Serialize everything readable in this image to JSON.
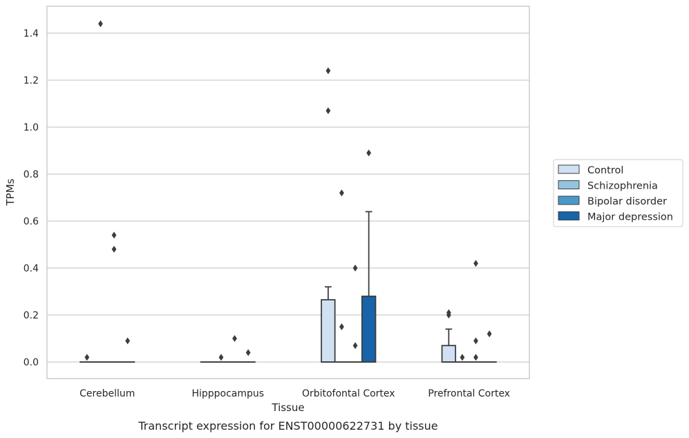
{
  "caption": "Transcript expression for ENST00000622731 by tissue",
  "chart_data": {
    "type": "box",
    "xlabel": "Tissue",
    "ylabel": "TPMs",
    "ylim": [
      -0.07,
      1.52
    ],
    "yticks": [
      0.0,
      0.2,
      0.4,
      0.6,
      0.8,
      1.0,
      1.2,
      1.4
    ],
    "ytick_labels": [
      "0.0",
      "0.2",
      "0.4",
      "0.6",
      "0.8",
      "1.0",
      "1.2",
      "1.4"
    ],
    "grid": "horizontal",
    "legend_position": "right",
    "categories": [
      "Cerebellum",
      "Hipppocampus",
      "Orbitofontal Cortex",
      "Prefrontal Cortex"
    ],
    "series": [
      {
        "name": "Control",
        "color": "#cfe1f2",
        "boxes": [
          {
            "q1": 0,
            "median": 0,
            "q3": 0,
            "whisker_low": 0,
            "whisker_high": 0,
            "outliers": [
              0.02
            ]
          },
          {
            "q1": 0,
            "median": 0,
            "q3": 0,
            "whisker_low": 0,
            "whisker_high": 0,
            "outliers": []
          },
          {
            "q1": 0,
            "median": 0,
            "q3": 0.265,
            "whisker_low": 0,
            "whisker_high": 0.32,
            "outliers": [
              1.24,
              1.07
            ]
          },
          {
            "q1": 0,
            "median": 0,
            "q3": 0.07,
            "whisker_low": 0,
            "whisker_high": 0.14,
            "outliers": [
              0.21,
              0.2
            ]
          }
        ]
      },
      {
        "name": "Schizophrenia",
        "color": "#93c4de",
        "boxes": [
          {
            "q1": 0,
            "median": 0,
            "q3": 0,
            "whisker_low": 0,
            "whisker_high": 0,
            "outliers": [
              1.44
            ]
          },
          {
            "q1": 0,
            "median": 0,
            "q3": 0,
            "whisker_low": 0,
            "whisker_high": 0,
            "outliers": [
              0.02
            ]
          },
          {
            "q1": 0,
            "median": 0,
            "q3": 0,
            "whisker_low": 0,
            "whisker_high": 0,
            "outliers": [
              0.72,
              0.15
            ]
          },
          {
            "q1": 0,
            "median": 0,
            "q3": 0,
            "whisker_low": 0,
            "whisker_high": 0,
            "outliers": [
              0.02
            ]
          }
        ]
      },
      {
        "name": "Bipolar disorder",
        "color": "#4a98c9",
        "boxes": [
          {
            "q1": 0,
            "median": 0,
            "q3": 0,
            "whisker_low": 0,
            "whisker_high": 0,
            "outliers": [
              0.54,
              0.48
            ]
          },
          {
            "q1": 0,
            "median": 0,
            "q3": 0,
            "whisker_low": 0,
            "whisker_high": 0,
            "outliers": [
              0.1
            ]
          },
          {
            "q1": 0,
            "median": 0,
            "q3": 0,
            "whisker_low": 0,
            "whisker_high": 0,
            "outliers": [
              0.4,
              0.07
            ]
          },
          {
            "q1": 0,
            "median": 0,
            "q3": 0,
            "whisker_low": 0,
            "whisker_high": 0,
            "outliers": [
              0.42,
              0.09,
              0.02
            ]
          }
        ]
      },
      {
        "name": "Major depression",
        "color": "#1764ab",
        "boxes": [
          {
            "q1": 0,
            "median": 0,
            "q3": 0,
            "whisker_low": 0,
            "whisker_high": 0,
            "outliers": [
              0.09
            ]
          },
          {
            "q1": 0,
            "median": 0,
            "q3": 0,
            "whisker_low": 0,
            "whisker_high": 0,
            "outliers": [
              0.04
            ]
          },
          {
            "q1": 0,
            "median": 0,
            "q3": 0.28,
            "whisker_low": 0,
            "whisker_high": 0.64,
            "outliers": [
              0.89
            ]
          },
          {
            "q1": 0,
            "median": 0,
            "q3": 0,
            "whisker_low": 0,
            "whisker_high": 0,
            "outliers": [
              0.12
            ]
          }
        ]
      }
    ],
    "styles": {
      "grid_color": "#cccccc",
      "frame_color": "#cccccc",
      "line_color": "#3d3d3d"
    }
  }
}
